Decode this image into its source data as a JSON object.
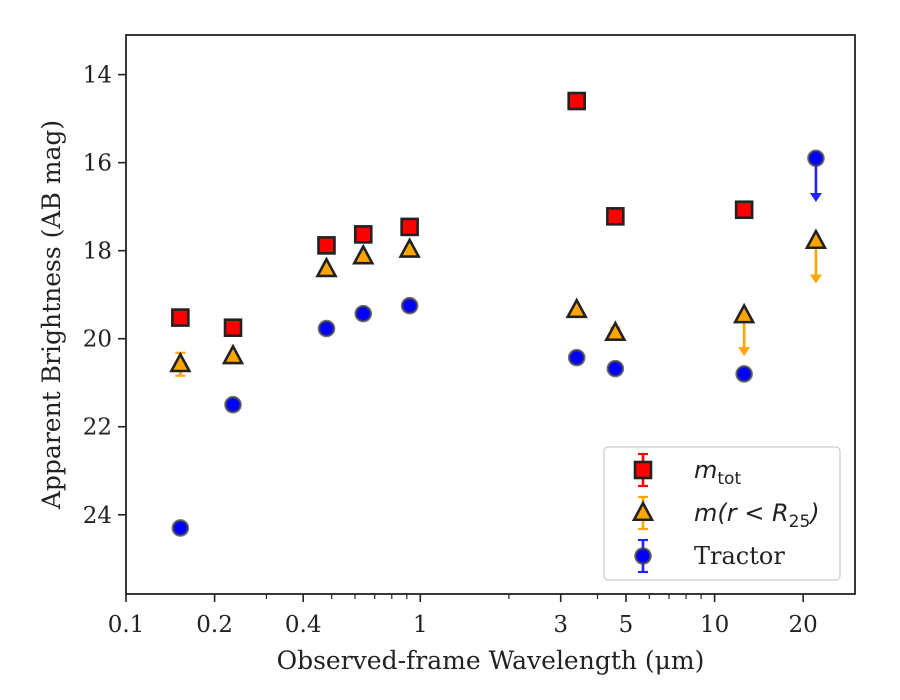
{
  "chart_data": {
    "type": "scatter",
    "title": "",
    "xlabel": "Observed-frame Wavelength (μm)",
    "ylabel": "Apparent Brightness (AB mag)",
    "xscale": "log",
    "xlim": [
      0.1,
      30
    ],
    "ylim": [
      25.8,
      13.1
    ],
    "y_inverted": true,
    "grid": false,
    "x_ticks": [
      {
        "value": 0.1,
        "label": "0.1"
      },
      {
        "value": 0.2,
        "label": "0.2"
      },
      {
        "value": 0.4,
        "label": "0.4"
      },
      {
        "value": 1,
        "label": "1"
      },
      {
        "value": 3,
        "label": "3"
      },
      {
        "value": 5,
        "label": "5"
      },
      {
        "value": 10,
        "label": "10"
      },
      {
        "value": 20,
        "label": "20"
      }
    ],
    "y_ticks": [
      {
        "value": 14,
        "label": "14"
      },
      {
        "value": 16,
        "label": "16"
      },
      {
        "value": 18,
        "label": "18"
      },
      {
        "value": 20,
        "label": "20"
      },
      {
        "value": 22,
        "label": "22"
      },
      {
        "value": 24,
        "label": "24"
      }
    ],
    "legend_position": "lower right",
    "series": [
      {
        "name": "m_tot",
        "legend_label": {
          "base": "m",
          "sub": "tot"
        },
        "marker": "square",
        "color": "#ff0000",
        "edge": "#222222",
        "errorbar_color": "#ff0000",
        "points": [
          {
            "x": 0.153,
            "y": 19.52,
            "err": 0.04
          },
          {
            "x": 0.231,
            "y": 19.75,
            "err": 0.04
          },
          {
            "x": 0.48,
            "y": 17.88,
            "err": 0.03
          },
          {
            "x": 0.64,
            "y": 17.63,
            "err": 0.03
          },
          {
            "x": 0.92,
            "y": 17.46,
            "err": 0.03
          },
          {
            "x": 3.4,
            "y": 14.6,
            "err": 0.03
          },
          {
            "x": 4.6,
            "y": 17.22,
            "err": 0.03
          },
          {
            "x": 12.6,
            "y": 17.07,
            "err": 0.03
          }
        ]
      },
      {
        "name": "m(r<R25)",
        "legend_label": {
          "base": "m(r < R",
          "sub": "25",
          "tail": ")"
        },
        "marker": "triangle",
        "color": "#ffa500",
        "edge": "#222222",
        "errorbar_color": "#ffa500",
        "points": [
          {
            "x": 0.153,
            "y": 20.58,
            "err": 0.26
          },
          {
            "x": 0.231,
            "y": 20.4,
            "err": 0.05
          },
          {
            "x": 0.48,
            "y": 18.42,
            "err": 0.03
          },
          {
            "x": 0.64,
            "y": 18.13,
            "err": 0.03
          },
          {
            "x": 0.92,
            "y": 17.98,
            "err": 0.03
          },
          {
            "x": 3.4,
            "y": 19.35,
            "err": 0.05
          },
          {
            "x": 4.6,
            "y": 19.87,
            "err": 0.12
          },
          {
            "x": 12.6,
            "y": 19.47,
            "upper_limit": true,
            "limit_to": 20.35
          },
          {
            "x": 22.1,
            "y": 17.78,
            "upper_limit": true,
            "limit_to": 18.7
          }
        ]
      },
      {
        "name": "Tractor",
        "legend_label": {
          "base": "Tractor"
        },
        "marker": "circle",
        "color": "#0000ff",
        "edge": "#444444",
        "errorbar_color": "#2222ff",
        "points": [
          {
            "x": 0.153,
            "y": 24.3,
            "err": 0.06
          },
          {
            "x": 0.231,
            "y": 21.5,
            "err": 0.05
          },
          {
            "x": 0.48,
            "y": 19.77,
            "err": 0.04
          },
          {
            "x": 0.64,
            "y": 19.43,
            "err": 0.04
          },
          {
            "x": 0.92,
            "y": 19.25,
            "err": 0.04
          },
          {
            "x": 3.4,
            "y": 20.43,
            "err": 0.05
          },
          {
            "x": 4.6,
            "y": 20.68,
            "err": 0.05
          },
          {
            "x": 12.6,
            "y": 20.8,
            "err": 0.06
          },
          {
            "x": 22.1,
            "y": 15.9,
            "upper_limit": true,
            "limit_to": 16.85
          }
        ]
      }
    ]
  }
}
